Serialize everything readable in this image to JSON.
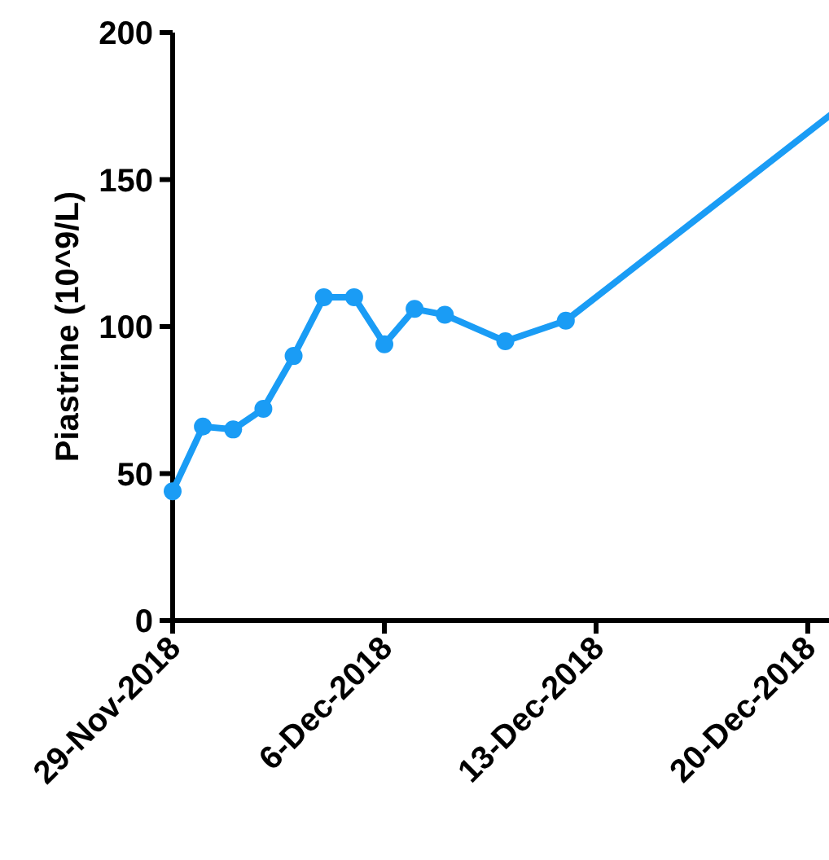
{
  "chart_data": {
    "type": "line",
    "ylabel": "Piastrine (10^9/L)",
    "x": [
      "2018-11-29",
      "2018-11-30",
      "2018-12-01",
      "2018-12-02",
      "2018-12-03",
      "2018-12-04",
      "2018-12-05",
      "2018-12-06",
      "2018-12-07",
      "2018-12-08",
      "2018-12-10",
      "2018-12-12",
      "2018-12-21"
    ],
    "series": [
      {
        "color": "#1a9cf5",
        "values": [
          44,
          66,
          65,
          72,
          90,
          110,
          110,
          94,
          106,
          104,
          95,
          102,
          174
        ]
      }
    ],
    "xlim": [
      "2018-11-29",
      "2018-12-21"
    ],
    "xticks": [
      {
        "value": "2018-11-29",
        "label": "29-Nov-2018"
      },
      {
        "value": "2018-12-06",
        "label": "6-Dec-2018"
      },
      {
        "value": "2018-12-13",
        "label": "13-Dec-2018"
      },
      {
        "value": "2018-12-20",
        "label": "20-Dec-2018"
      }
    ],
    "ylim": [
      0,
      200
    ],
    "yticks": [
      0,
      50,
      100,
      150,
      200
    ],
    "marker": "circle",
    "line_style": "solid",
    "grid": false
  }
}
